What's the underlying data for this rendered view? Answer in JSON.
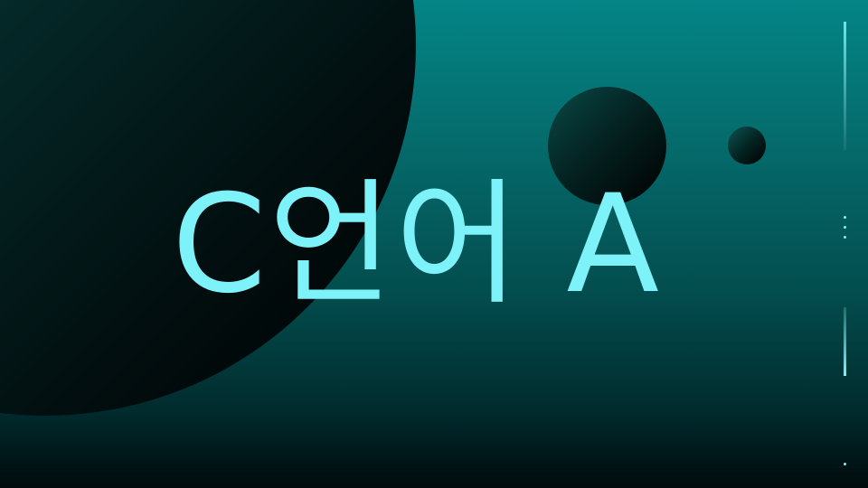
{
  "slide": {
    "title": "C언어 A"
  },
  "colors": {
    "title_text": "#7df2f8",
    "background_top": "#048586",
    "background_bottom": "#000a0c",
    "accent_line": "#7df2f8"
  }
}
